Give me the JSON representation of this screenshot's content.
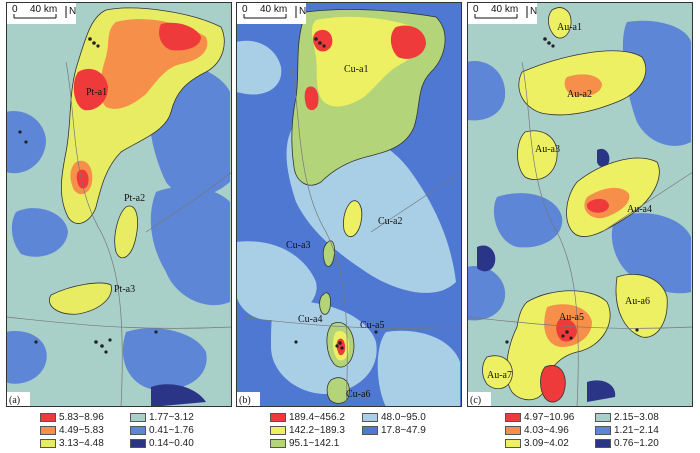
{
  "scale_bar": {
    "zero": "0",
    "distance": "40 km",
    "north": "N"
  },
  "panels": [
    {
      "id": "a",
      "letter": "(a)",
      "labels": [
        "Pt-a1",
        "Pt-a2",
        "Pt-a3"
      ],
      "legend": [
        {
          "range": "5.83~8.96",
          "color": "#ee3a3a"
        },
        {
          "range": "1.77~3.12",
          "color": "#a9cfc9"
        },
        {
          "range": "4.49~5.83",
          "color": "#f58f4a"
        },
        {
          "range": "0.41~1.76",
          "color": "#5d86d6"
        },
        {
          "range": "3.13~4.48",
          "color": "#e7ec63"
        },
        {
          "range": "0.14~0.40",
          "color": "#2a3588"
        }
      ]
    },
    {
      "id": "b",
      "letter": "(b)",
      "labels": [
        "Cu-a1",
        "Cu-a2",
        "Cu-a3",
        "Cu-a4",
        "Cu-a5",
        "Cu-a6"
      ],
      "legend": [
        {
          "range": "189.4~456.2",
          "color": "#ee3a3a"
        },
        {
          "range": "48.0~95.0",
          "color": "#a9cfe6"
        },
        {
          "range": "142.2~189.3",
          "color": "#eef064"
        },
        {
          "range": "17.8~47.9",
          "color": "#4f78d2"
        },
        {
          "range": "95.1~142.1",
          "color": "#b4d47a"
        }
      ]
    },
    {
      "id": "c",
      "letter": "(c)",
      "labels": [
        "Au-a1",
        "Au-a2",
        "Au-a3",
        "Au-a4",
        "Au-a5",
        "Au-a6",
        "Au-a7"
      ],
      "legend": [
        {
          "range": "4.97~10.96",
          "color": "#ee3a3a"
        },
        {
          "range": "2.15~3.08",
          "color": "#a9cfc9"
        },
        {
          "range": "4.03~4.96",
          "color": "#f58f4a"
        },
        {
          "range": "1.21~2.14",
          "color": "#5d86d6"
        },
        {
          "range": "3.09~4.02",
          "color": "#eef064"
        },
        {
          "range": "0.76~1.20",
          "color": "#2a3588"
        }
      ]
    }
  ]
}
